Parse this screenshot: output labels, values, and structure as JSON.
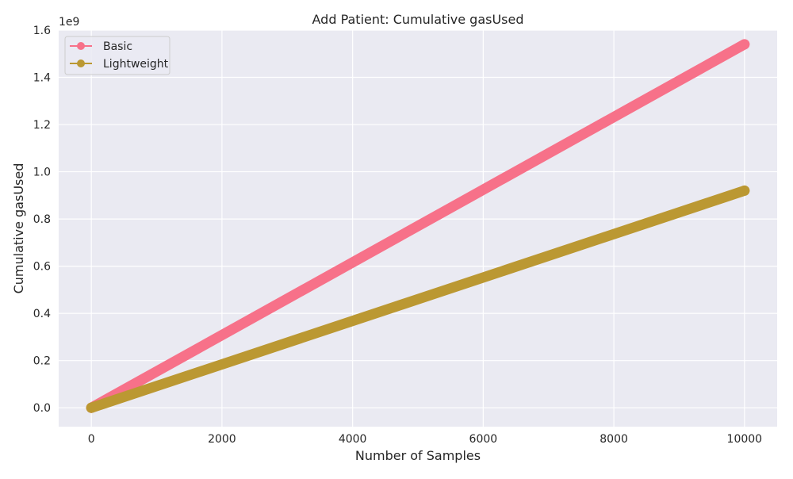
{
  "chart_data": {
    "type": "line",
    "title": "Add Patient: Cumulative gasUsed",
    "xlabel": "Number of Samples",
    "ylabel": "Cumulative gasUsed",
    "y_offset_text": "1e9",
    "xlim": [
      -500,
      10500
    ],
    "ylim": [
      -0.08,
      1.6
    ],
    "xticks": [
      0,
      2000,
      4000,
      6000,
      8000,
      10000
    ],
    "xtick_labels": [
      "0",
      "2000",
      "4000",
      "6000",
      "8000",
      "10000"
    ],
    "yticks": [
      0.0,
      0.2,
      0.4,
      0.6,
      0.8,
      1.0,
      1.2,
      1.4,
      1.6
    ],
    "ytick_labels": [
      "0.0",
      "0.2",
      "0.4",
      "0.6",
      "0.8",
      "1.0",
      "1.2",
      "1.4",
      "1.6"
    ],
    "grid": true,
    "legend_position": "top-left",
    "background_color": "#eaeaf2",
    "series": [
      {
        "name": "Basic",
        "color": "#f77189",
        "marker": "circle",
        "x": [
          0,
          10000
        ],
        "y": [
          0.0,
          1.54
        ]
      },
      {
        "name": "Lightweight",
        "color": "#bb9832",
        "marker": "circle",
        "x": [
          0,
          10000
        ],
        "y": [
          0.0,
          0.92
        ]
      }
    ]
  }
}
